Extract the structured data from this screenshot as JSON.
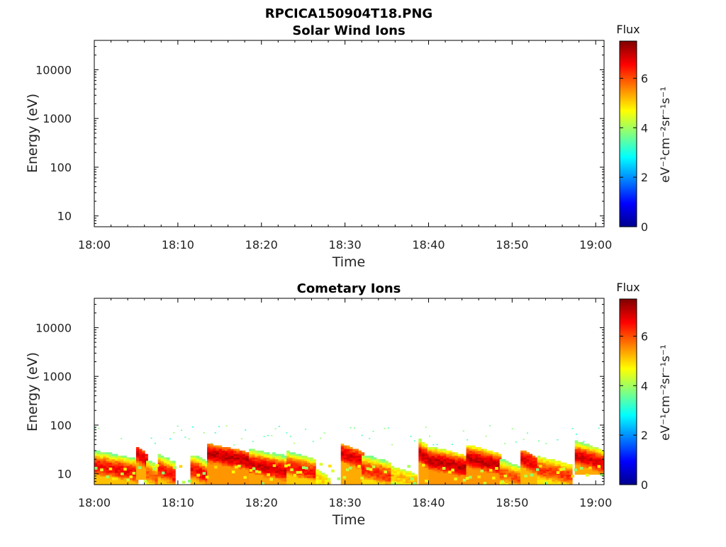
{
  "figure": {
    "filename": "RPCICA150904T18.PNG"
  },
  "colorbar_gradient": [
    "#00008f",
    "#0000ff",
    "#0080ff",
    "#00ffff",
    "#80ff80",
    "#ffff00",
    "#ff8000",
    "#ff0000",
    "#800000"
  ],
  "chart_data": [
    {
      "type": "heatmap",
      "title": "Solar Wind Ions",
      "xlabel": "Time",
      "ylabel": "Energy (eV)",
      "x_ticks": [
        "18:00",
        "18:10",
        "18:20",
        "18:30",
        "18:40",
        "18:50",
        "19:00"
      ],
      "x_range_minutes": [
        0,
        61
      ],
      "y_scale": "log",
      "y_ticks": [
        10,
        100,
        1000,
        10000
      ],
      "y_tick_labels": [
        "10",
        "100",
        "1000",
        "10000"
      ],
      "ylim": [
        6,
        40000
      ],
      "colorbar": {
        "title": "Flux",
        "label": "eV⁻¹cm⁻²sr⁻¹s⁻¹",
        "ticks": [
          0,
          2,
          4,
          6
        ],
        "range": [
          0,
          7.5
        ]
      },
      "values": []
    },
    {
      "type": "heatmap",
      "title": "Cometary Ions",
      "xlabel": "Time",
      "ylabel": "Energy (eV)",
      "x_ticks": [
        "18:00",
        "18:10",
        "18:20",
        "18:30",
        "18:40",
        "18:50",
        "19:00"
      ],
      "x_range_minutes": [
        0,
        61
      ],
      "y_scale": "log",
      "y_ticks": [
        10,
        100,
        1000,
        10000
      ],
      "y_tick_labels": [
        "10",
        "100",
        "1000",
        "10000"
      ],
      "ylim": [
        6,
        40000
      ],
      "colorbar": {
        "title": "Flux",
        "label": "eV⁻¹cm⁻²sr⁻¹s⁻¹",
        "ticks": [
          0,
          2,
          4,
          6
        ],
        "range": [
          0,
          7.5
        ]
      },
      "bands": [
        {
          "t_start": 0.0,
          "t_end": 5.0,
          "e_low": 6,
          "e_high": 30,
          "peak_energy": 14,
          "peak_flux": 6.6
        },
        {
          "t_start": 5.0,
          "t_end": 6.2,
          "e_low": 8,
          "e_high": 35,
          "peak_energy": 25,
          "peak_flux": 6.8
        },
        {
          "t_start": 6.2,
          "t_end": 7.6,
          "e_low": 6,
          "e_high": 20,
          "peak_energy": 10,
          "peak_flux": 6.0
        },
        {
          "t_start": 7.6,
          "t_end": 9.5,
          "e_low": 6,
          "e_high": 32,
          "peak_energy": 12,
          "peak_flux": 6.5
        },
        {
          "t_start": 11.5,
          "t_end": 13.5,
          "e_low": 6,
          "e_high": 30,
          "peak_energy": 12,
          "peak_flux": 6.6
        },
        {
          "t_start": 13.5,
          "t_end": 18.5,
          "e_low": 6,
          "e_high": 40,
          "peak_energy": 25,
          "peak_flux": 7.0
        },
        {
          "t_start": 18.5,
          "t_end": 23.0,
          "e_low": 6,
          "e_high": 38,
          "peak_energy": 15,
          "peak_flux": 6.9
        },
        {
          "t_start": 23.0,
          "t_end": 26.5,
          "e_low": 6,
          "e_high": 28,
          "peak_energy": 14,
          "peak_flux": 6.5
        },
        {
          "t_start": 26.5,
          "t_end": 28.0,
          "e_low": 6,
          "e_high": 12,
          "peak_energy": 8,
          "peak_flux": 5.0
        },
        {
          "t_start": 29.5,
          "t_end": 32.0,
          "e_low": 6,
          "e_high": 40,
          "peak_energy": 25,
          "peak_flux": 6.8
        },
        {
          "t_start": 32.0,
          "t_end": 35.5,
          "e_low": 6,
          "e_high": 26,
          "peak_energy": 12,
          "peak_flux": 6.3
        },
        {
          "t_start": 35.5,
          "t_end": 38.5,
          "e_low": 6,
          "e_high": 14,
          "peak_energy": 9,
          "peak_flux": 5.2
        },
        {
          "t_start": 38.8,
          "t_end": 40.0,
          "e_low": 6,
          "e_high": 50,
          "peak_energy": 25,
          "peak_flux": 6.9
        },
        {
          "t_start": 40.0,
          "t_end": 44.5,
          "e_low": 6,
          "e_high": 35,
          "peak_energy": 18,
          "peak_flux": 7.0
        },
        {
          "t_start": 44.5,
          "t_end": 48.5,
          "e_low": 6,
          "e_high": 38,
          "peak_energy": 20,
          "peak_flux": 7.0
        },
        {
          "t_start": 48.5,
          "t_end": 51.0,
          "e_low": 6,
          "e_high": 20,
          "peak_energy": 10,
          "peak_flux": 6.0
        },
        {
          "t_start": 51.0,
          "t_end": 53.0,
          "e_low": 6,
          "e_high": 30,
          "peak_energy": 20,
          "peak_flux": 6.7
        },
        {
          "t_start": 53.0,
          "t_end": 57.0,
          "e_low": 6,
          "e_high": 22,
          "peak_energy": 12,
          "peak_flux": 6.2
        },
        {
          "t_start": 57.5,
          "t_end": 60.8,
          "e_low": 10,
          "e_high": 45,
          "peak_energy": 22,
          "peak_flux": 6.8
        }
      ],
      "noise_energy_range": [
        40,
        100
      ],
      "noise_flux": 3.5
    }
  ]
}
